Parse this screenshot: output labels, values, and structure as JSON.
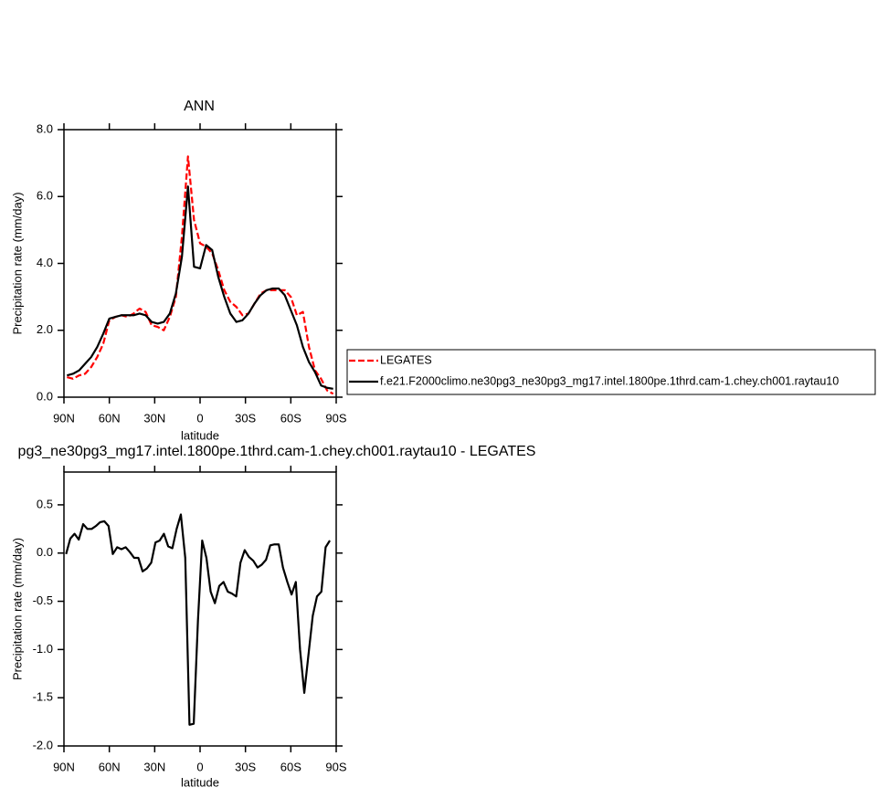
{
  "chart_data": [
    {
      "type": "line",
      "title": "ANN",
      "xlabel": "latitude",
      "ylabel": "Precipitation rate (mm/day)",
      "x": [
        88,
        84,
        80,
        76,
        72,
        68,
        64,
        60,
        56,
        52,
        48,
        44,
        40,
        36,
        32,
        28,
        24,
        20,
        16,
        12,
        8,
        4,
        0,
        -4,
        -8,
        -12,
        -16,
        -20,
        -24,
        -28,
        -32,
        -36,
        -40,
        -44,
        -48,
        -52,
        -56,
        -60,
        -64,
        -68,
        -72,
        -76,
        -80,
        -84,
        -88
      ],
      "series": [
        {
          "name": "LEGATES",
          "color": "#ff0000",
          "dashed": true,
          "values": [
            0.6,
            0.55,
            0.65,
            0.7,
            0.9,
            1.2,
            1.6,
            2.3,
            2.4,
            2.45,
            2.4,
            2.5,
            2.65,
            2.55,
            2.15,
            2.1,
            2.0,
            2.4,
            3.0,
            4.8,
            7.2,
            5.3,
            4.6,
            4.5,
            4.3,
            3.8,
            3.2,
            2.85,
            2.7,
            2.45,
            2.5,
            2.8,
            3.1,
            3.2,
            3.2,
            3.2,
            3.2,
            3.0,
            2.45,
            2.55,
            1.5,
            0.8,
            0.55,
            0.2,
            0.1
          ]
        },
        {
          "name": "f.e21.F2000climo.ne30pg3_ne30pg3_mg17.intel.1800pe.1thrd.cam-1.chey.ch001.raytau10",
          "color": "#000000",
          "dashed": false,
          "values": [
            0.65,
            0.7,
            0.8,
            1.0,
            1.2,
            1.5,
            1.9,
            2.35,
            2.4,
            2.45,
            2.45,
            2.45,
            2.5,
            2.45,
            2.25,
            2.2,
            2.25,
            2.5,
            3.1,
            4.2,
            6.3,
            3.9,
            3.85,
            4.55,
            4.4,
            3.6,
            3.0,
            2.5,
            2.25,
            2.3,
            2.5,
            2.8,
            3.05,
            3.2,
            3.25,
            3.25,
            3.05,
            2.6,
            2.15,
            1.5,
            1.05,
            0.75,
            0.35,
            0.28,
            0.25
          ]
        }
      ],
      "xlim": [
        90,
        -90
      ],
      "xticks": [
        {
          "value": 90,
          "label": "90N"
        },
        {
          "value": 60,
          "label": "60N"
        },
        {
          "value": 30,
          "label": "30N"
        },
        0,
        {
          "value": -30,
          "label": "30S"
        },
        {
          "value": -60,
          "label": "60S"
        },
        {
          "value": -90,
          "label": "90S"
        }
      ],
      "ylim": [
        0,
        8
      ],
      "yticks": [
        {
          "value": 0,
          "label": "0.0"
        },
        {
          "value": 2,
          "label": "2.0"
        },
        {
          "value": 4,
          "label": "4.0"
        },
        {
          "value": 6,
          "label": "6.0"
        },
        {
          "value": 8,
          "label": "8.0"
        }
      ],
      "legend": "right"
    },
    {
      "type": "line",
      "title": "pg3_ne30pg3_mg17.intel.1800pe.1thrd.cam-1.chey.ch001.raytau10 - LEGATES",
      "xlabel": "latitude",
      "ylabel": "Precipitation rate (mm/day)",
      "x": [
        88.6,
        85.8,
        83.0,
        80.2,
        77.3,
        74.5,
        71.7,
        68.9,
        66.1,
        63.3,
        60.5,
        57.7,
        54.8,
        52.0,
        49.2,
        46.4,
        43.6,
        40.8,
        38.0,
        35.2,
        32.3,
        29.5,
        26.7,
        23.9,
        21.1,
        18.3,
        15.5,
        12.7,
        9.8,
        7.0,
        4.2,
        1.4,
        -1.4,
        -4.2,
        -7.0,
        -9.8,
        -12.7,
        -15.5,
        -18.3,
        -21.1,
        -23.9,
        -26.7,
        -29.5,
        -32.3,
        -35.2,
        -38.0,
        -40.8,
        -43.6,
        -46.4,
        -49.2,
        -52.0,
        -54.8,
        -57.7,
        -60.5,
        -63.3,
        -66.1,
        -68.9,
        -71.7,
        -74.5,
        -77.3,
        -80.2,
        -83.0,
        -85.8
      ],
      "color": "#000000",
      "values": [
        -0.01,
        0.15,
        0.2,
        0.14,
        0.3,
        0.25,
        0.25,
        0.28,
        0.32,
        0.33,
        0.28,
        -0.01,
        0.06,
        0.04,
        0.06,
        0.01,
        -0.05,
        -0.05,
        -0.19,
        -0.16,
        -0.1,
        0.11,
        0.13,
        0.2,
        0.07,
        0.05,
        0.25,
        0.4,
        -0.05,
        -1.78,
        -1.77,
        -0.7,
        0.13,
        -0.05,
        -0.4,
        -0.52,
        -0.34,
        -0.3,
        -0.4,
        -0.42,
        -0.45,
        -0.1,
        0.03,
        -0.04,
        -0.08,
        -0.15,
        -0.12,
        -0.07,
        0.08,
        0.09,
        0.09,
        -0.15,
        -0.3,
        -0.43,
        -0.3,
        -1.0,
        -1.45,
        -1.05,
        -0.65,
        -0.45,
        -0.4,
        0.06,
        0.13
      ],
      "xlim": [
        90,
        -90
      ],
      "xticks": [
        {
          "value": 90,
          "label": "90N"
        },
        {
          "value": 60,
          "label": "60N"
        },
        {
          "value": 30,
          "label": "30N"
        },
        0,
        {
          "value": -30,
          "label": "30S"
        },
        {
          "value": -60,
          "label": "60S"
        },
        {
          "value": -90,
          "label": "90S"
        }
      ],
      "ylim": [
        -2.0,
        0.84
      ],
      "yticks": [
        {
          "value": -2,
          "label": "-2.0"
        },
        -1.5,
        {
          "value": -1,
          "label": "-1.0"
        },
        -0.5,
        {
          "value": 0,
          "label": "0.0"
        },
        0.5
      ]
    }
  ]
}
